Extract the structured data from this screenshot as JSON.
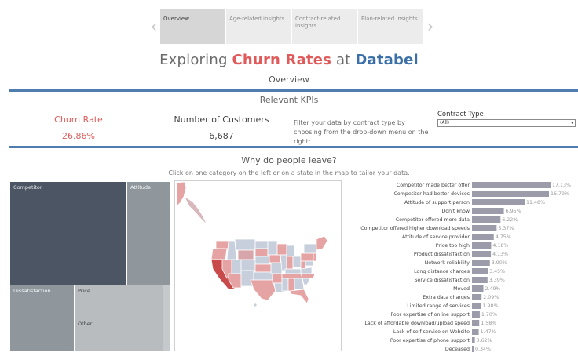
{
  "nav": {
    "tabs": [
      "Overview",
      "Age-related insights",
      "Contract-related insights",
      "Plan-related insights"
    ],
    "active": 0,
    "prev_glyph": "‹",
    "next_glyph": "›"
  },
  "header": {
    "title_part1": "Exploring ",
    "title_part2": "Churn Rates",
    "title_part3": " at ",
    "title_part4": "Databel",
    "subtitle": "Overview"
  },
  "kpis": {
    "heading": "Relevant KPIs",
    "churn_label": "Churn Rate",
    "churn_value": "26.86%",
    "customers_label": "Number of Customers",
    "customers_value": "6,687",
    "filter_text": "Filter your data by contract type by choosing from the drop-down menu on the right:",
    "contract_type_label": "Contract Type",
    "contract_type_value": "(All)"
  },
  "section": {
    "title": "Why do people leave?",
    "instruction": "Click on one category on the left or on a state in the map to tailor your data."
  },
  "treemap": {
    "competitor": "Competitor",
    "attitude": "Attitude",
    "dissatisfaction": "Dissatisfaction",
    "price": "Price",
    "other": "Other"
  },
  "colors": {
    "accent_red": "#e05a5a",
    "accent_blue": "#3a6fa8",
    "rule_blue": "#4f7db0",
    "bar": "#9b9baa",
    "tm_dark": "#4b5563",
    "tm_mid": "#8f979c",
    "tm_light": "#b8bcbf"
  },
  "chart_data": {
    "type": "bar",
    "orientation": "horizontal",
    "categories": [
      "Competitor made better offer",
      "Competitor had better devices",
      "Attitude of support person",
      "Don't know",
      "Competitor offered more data",
      "Competitor offered higher download speeds",
      "Attitude of service provider",
      "Price too high",
      "Product dissatisfaction",
      "Network reliability",
      "Long distance charges",
      "Service dissatisfaction",
      "Moved",
      "Extra data charges",
      "Limited range of services",
      "Poor expertise of online support",
      "Lack of affordable download/upload speed",
      "Lack of self-service on Website",
      "Poor expertise of phone support",
      "Deceased"
    ],
    "values": [
      17.13,
      16.79,
      11.48,
      6.95,
      6.22,
      5.37,
      4.75,
      4.18,
      4.13,
      3.9,
      3.45,
      3.39,
      2.49,
      2.09,
      1.98,
      1.7,
      1.58,
      1.47,
      0.62,
      0.34
    ],
    "labels": [
      "17.13%",
      "16.79%",
      "11.48%",
      "6.95%",
      "6.22%",
      "5.37%",
      "4.75%",
      "4.18%",
      "4.13%",
      "3.90%",
      "3.45%",
      "3.39%",
      "2.49%",
      "2.09%",
      "1.98%",
      "1.70%",
      "1.58%",
      "1.47%",
      "0.62%",
      "0.34%"
    ],
    "xlim": [
      0,
      17.13
    ]
  }
}
